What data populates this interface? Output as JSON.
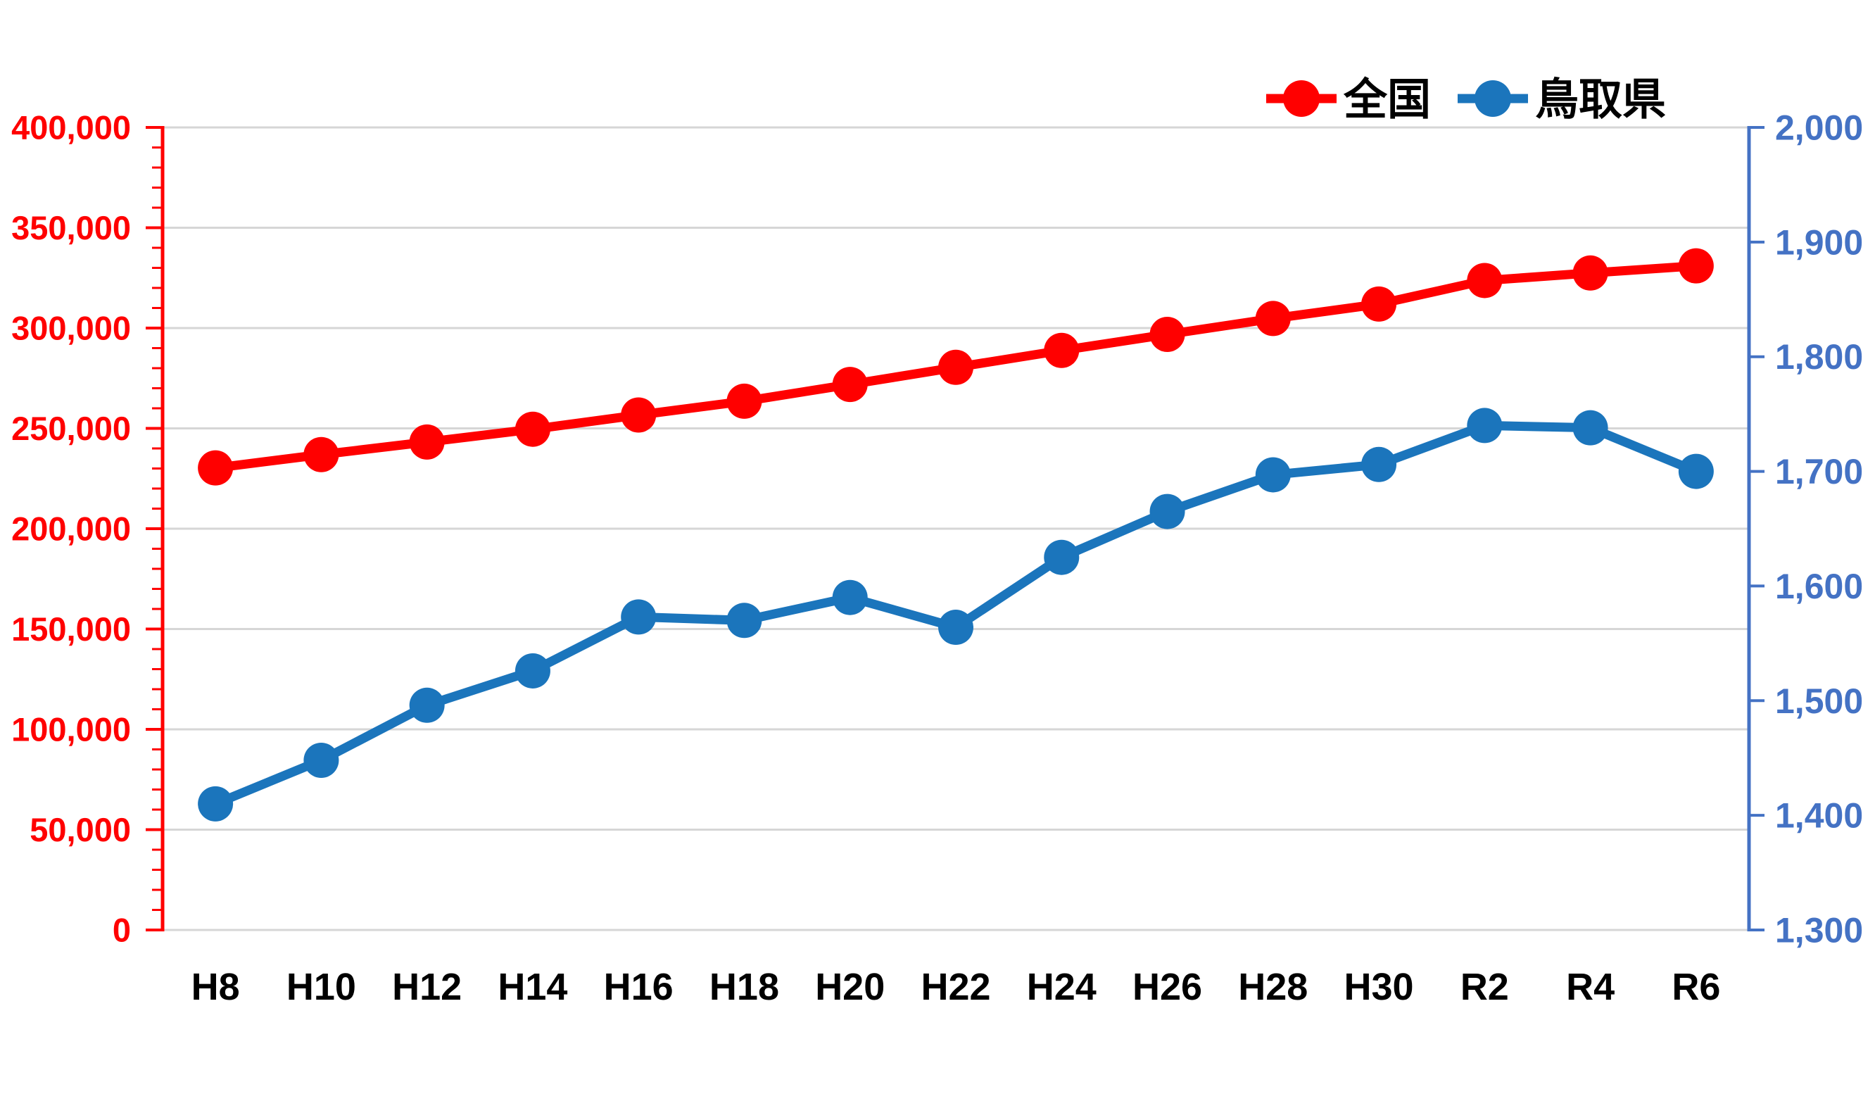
{
  "chart_data": {
    "type": "line",
    "title": "",
    "categories": [
      "H8",
      "H10",
      "H12",
      "H14",
      "H16",
      "H18",
      "H20",
      "H22",
      "H24",
      "H26",
      "H28",
      "H30",
      "R2",
      "R4",
      "R6"
    ],
    "series": [
      {
        "name": "全国",
        "axis": "left",
        "color": "#FF0000",
        "marker": "circle",
        "values": [
          230297,
          236933,
          243201,
          249574,
          256668,
          263540,
          271897,
          280431,
          288850,
          296845,
          304759,
          311963,
          323700,
          327444,
          331000
        ]
      },
      {
        "name": "鳥取県",
        "axis": "right",
        "color": "#1B75BC",
        "marker": "circle",
        "values": [
          1410,
          1448,
          1496,
          1526,
          1573,
          1570,
          1590,
          1564,
          1625,
          1665,
          1697,
          1706,
          1740,
          1738,
          1700
        ]
      }
    ],
    "axes": {
      "left": {
        "min": 0,
        "max": 400000,
        "major_step": 50000,
        "minor_step": 10000,
        "color": "#FF0000",
        "tick_labels": [
          "0",
          "50,000",
          "100,000",
          "150,000",
          "200,000",
          "250,000",
          "300,000",
          "350,000",
          "400,000"
        ]
      },
      "right": {
        "min": 1300,
        "max": 2000,
        "major_step": 100,
        "color": "#4472C4",
        "tick_labels": [
          "1,300",
          "1,400",
          "1,500",
          "1,600",
          "1,700",
          "1,800",
          "1,900",
          "2,000"
        ]
      }
    },
    "legend": {
      "position": "top-right",
      "entries": [
        "全国",
        "鳥取県"
      ]
    },
    "grid": {
      "horizontal": true,
      "color": "#D6D6D6"
    },
    "x_label_color": "#000000",
    "background": "#FFFFFF"
  }
}
